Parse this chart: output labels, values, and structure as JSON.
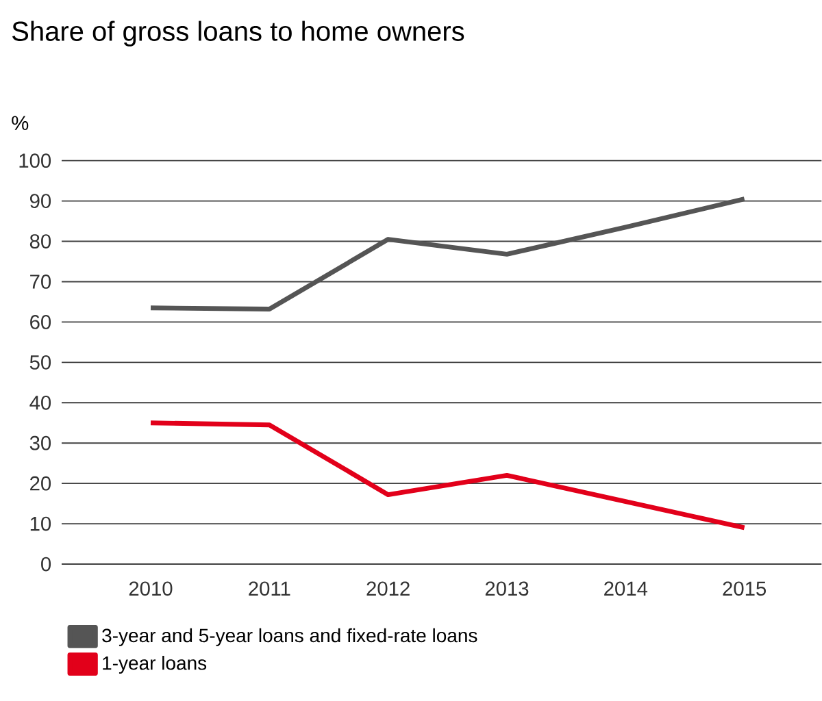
{
  "chart_data": {
    "type": "line",
    "title": "Share of gross loans to home owners",
    "ylabel": "%",
    "categories": [
      "2010",
      "2011",
      "2012",
      "2013",
      "2014",
      "2015"
    ],
    "series": [
      {
        "name": "3-year and 5-year loans and fixed-rate loans",
        "color": "#555555",
        "values": [
          63.5,
          63.2,
          80.5,
          76.8,
          83.5,
          90.5
        ]
      },
      {
        "name": "1-year loans",
        "color": "#e2001a",
        "values": [
          35,
          34.5,
          17.2,
          22,
          15.5,
          9
        ]
      }
    ],
    "ylim": [
      0,
      100
    ],
    "yticks": [
      0,
      10,
      20,
      30,
      40,
      50,
      60,
      70,
      80,
      90,
      100
    ],
    "grid": "y",
    "legend": "bottom",
    "marker": "none",
    "line_style": "solid"
  }
}
